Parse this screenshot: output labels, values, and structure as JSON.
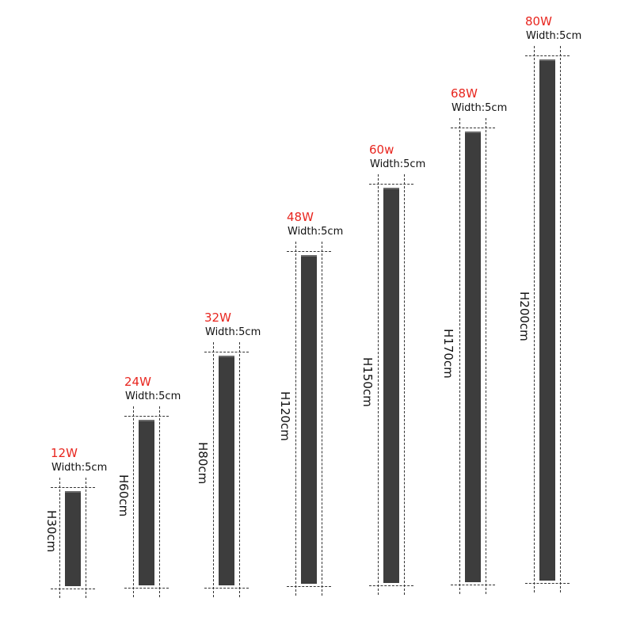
{
  "lamps": [
    {
      "power": "12W",
      "width": "Width:5cm",
      "height": "H30cm"
    },
    {
      "power": "24W",
      "width": "Width:5cm",
      "height": "H60cm"
    },
    {
      "power": "32W",
      "width": "Width:5cm",
      "height": "H80cm"
    },
    {
      "power": "48W",
      "width": "Width:5cm",
      "height": "H120cm"
    },
    {
      "power": "60w",
      "width": "Width:5cm",
      "height": "H150cm"
    },
    {
      "power": "68W",
      "width": "Width:5cm",
      "height": "H170cm"
    },
    {
      "power": "80W",
      "width": "Width:5cm",
      "height": "H200cm"
    }
  ],
  "colors": {
    "power_label": "#e8261f",
    "bar": "#3d3d3d"
  }
}
